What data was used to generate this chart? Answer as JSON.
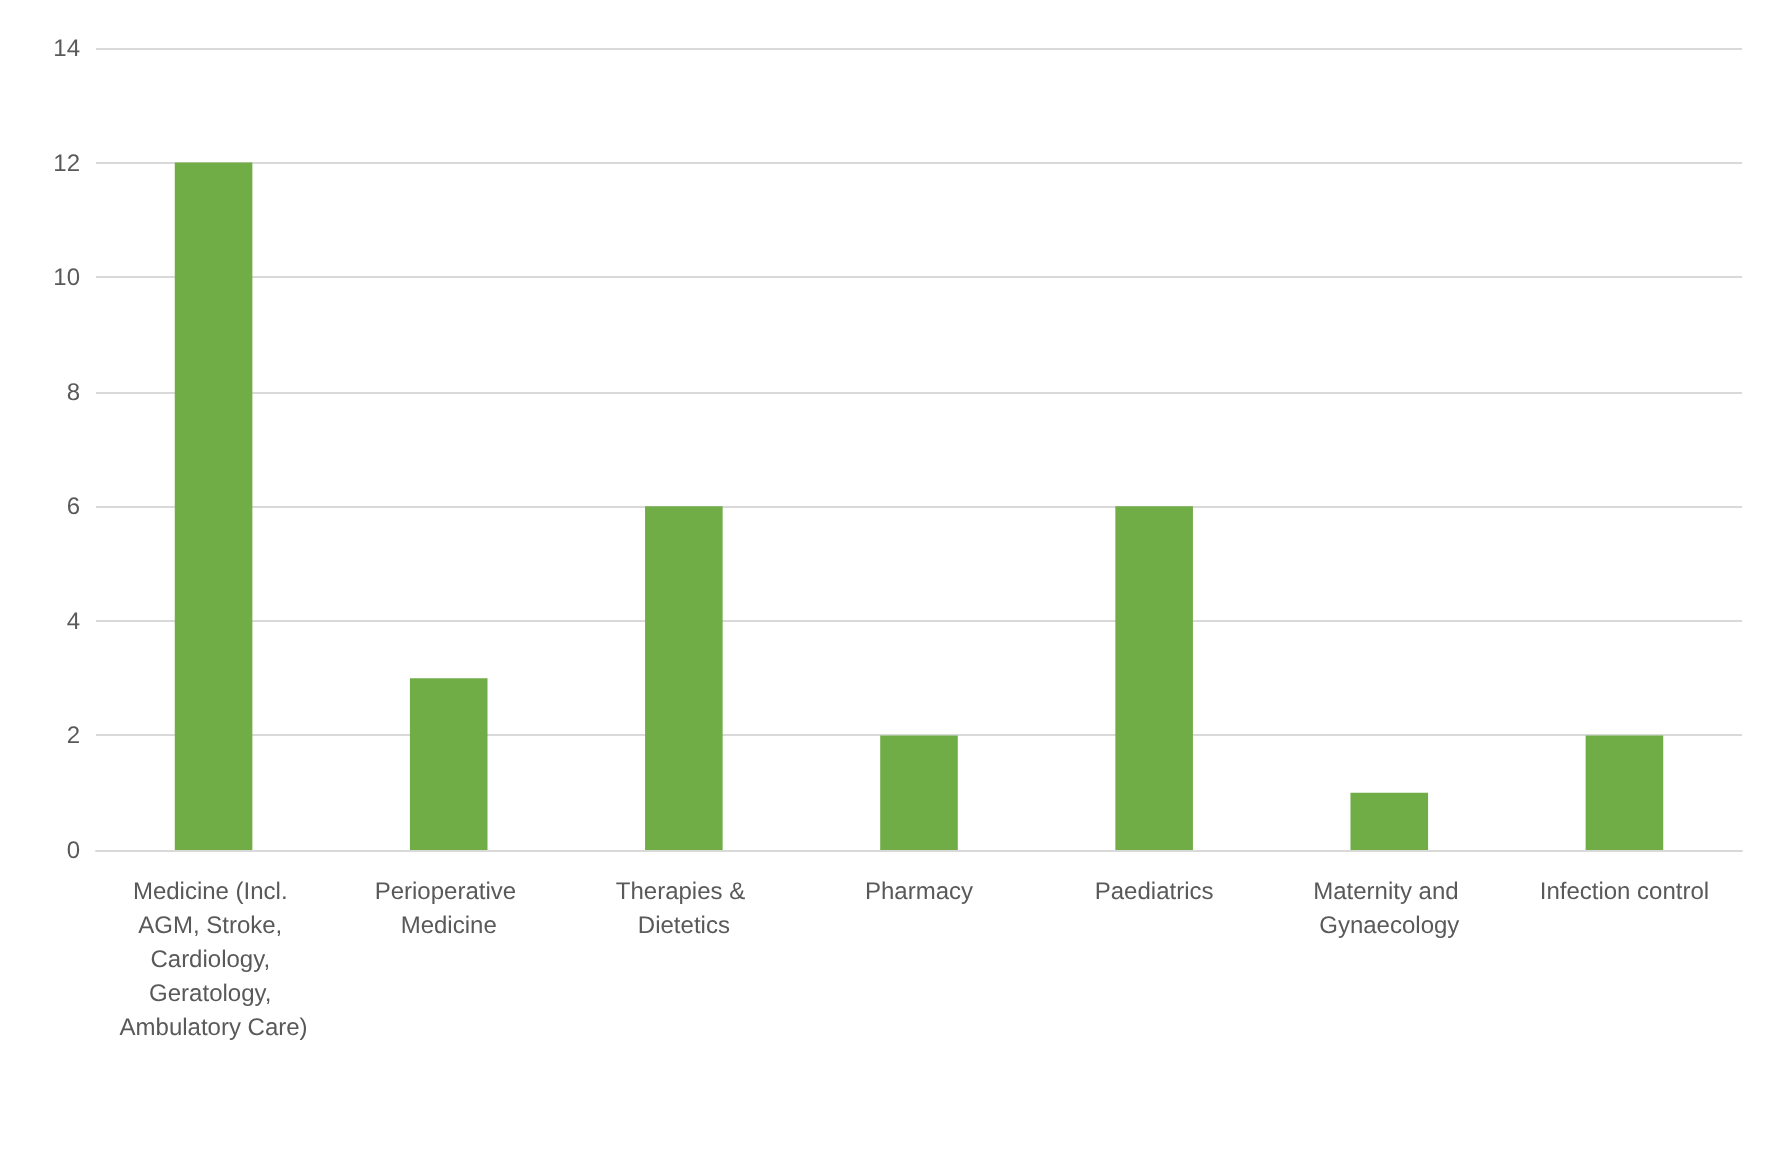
{
  "chart_data": {
    "type": "bar",
    "categories": [
      "Medicine (Incl. AGM, Stroke, Cardiology, Geratology, Ambulatory Care)",
      "Perioperative Medicine",
      "Therapies & Dietetics",
      "Pharmacy",
      "Paediatrics",
      "Maternity and Gynaecology",
      "Infection control"
    ],
    "values": [
      12,
      3,
      6,
      2,
      6,
      1,
      2
    ],
    "color": "#70ad47",
    "ylim": [
      0,
      14
    ],
    "yticks": [
      0,
      2,
      4,
      6,
      8,
      10,
      12,
      14
    ],
    "grid": "y"
  }
}
